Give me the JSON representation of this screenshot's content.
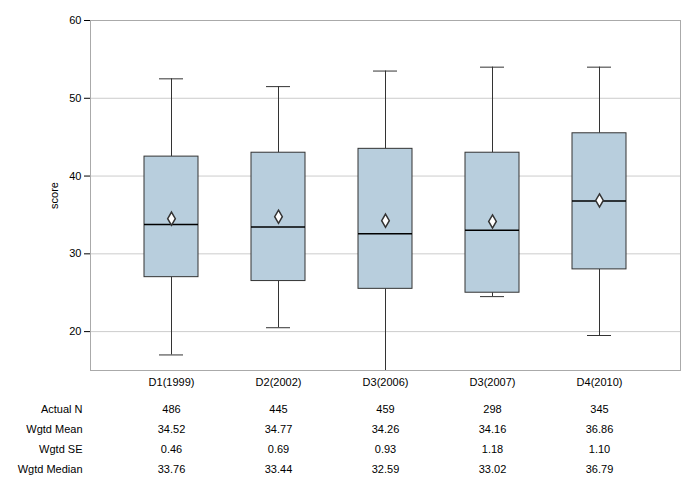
{
  "chart_data": {
    "type": "box",
    "ylabel": "score",
    "categories": [
      "D1(1999)",
      "D2(2002)",
      "D3(2006)",
      "D3(2007)",
      "D4(2010)"
    ],
    "boxes": [
      {
        "whislo": 17.0,
        "q1": 27.0,
        "med": 33.76,
        "q3": 42.5,
        "whishi": 52.5,
        "mean": 34.52
      },
      {
        "whislo": 20.5,
        "q1": 26.5,
        "med": 33.44,
        "q3": 43.0,
        "whishi": 51.5,
        "mean": 34.77
      },
      {
        "whislo": 15.0,
        "q1": 25.5,
        "med": 32.59,
        "q3": 43.5,
        "whishi": 53.5,
        "mean": 34.26
      },
      {
        "whislo": 24.5,
        "q1": 25.0,
        "med": 33.02,
        "q3": 43.0,
        "whishi": 54.0,
        "mean": 34.16
      },
      {
        "whislo": 19.5,
        "q1": 28.0,
        "med": 36.79,
        "q3": 45.5,
        "whishi": 54.0,
        "mean": 36.86
      }
    ],
    "ylim": [
      15,
      60
    ],
    "yticks": [
      20,
      30,
      40,
      50,
      60
    ],
    "grid": true,
    "color": "#b8cedd",
    "marker": "diamond",
    "table": {
      "rows": [
        "Actual N",
        "Wgtd Mean",
        "Wgtd SE",
        "Wgtd Median"
      ],
      "data": {
        "Actual N": [
          "486",
          "445",
          "459",
          "298",
          "345"
        ],
        "Wgtd Mean": [
          "34.52",
          "34.77",
          "34.26",
          "34.16",
          "36.86"
        ],
        "Wgtd SE": [
          "0.46",
          "0.69",
          "0.93",
          "1.18",
          "1.10"
        ],
        "Wgtd Median": [
          "33.76",
          "33.44",
          "32.59",
          "33.02",
          "36.79"
        ]
      }
    }
  }
}
